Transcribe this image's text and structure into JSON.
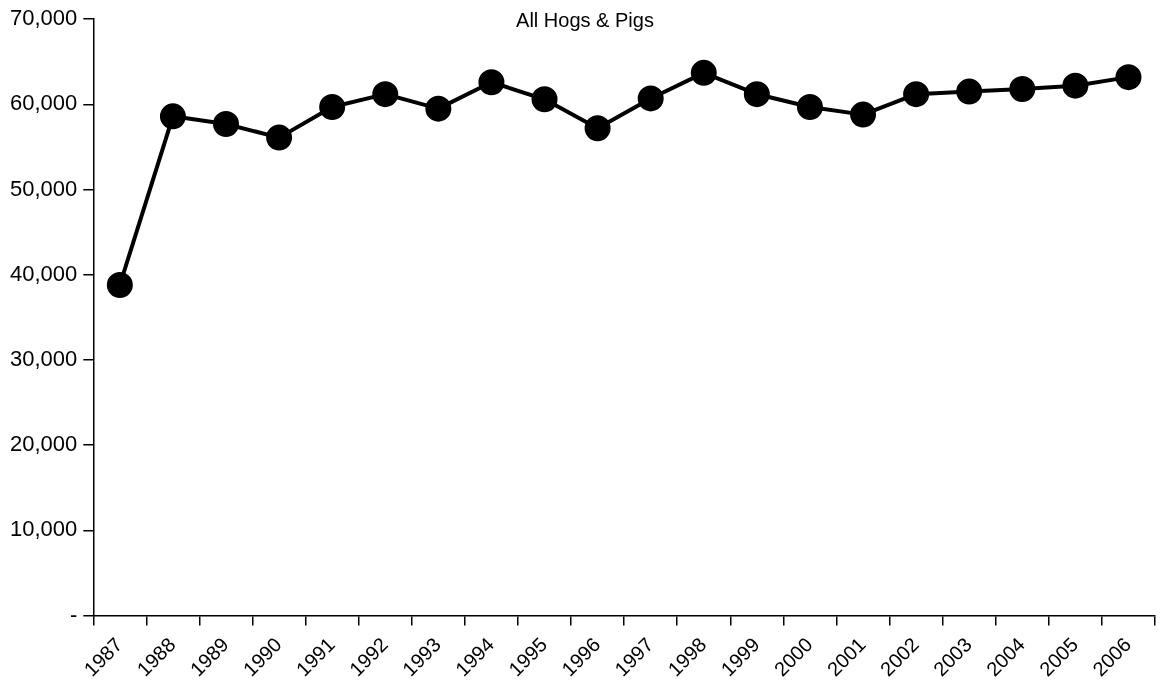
{
  "chart_data": {
    "type": "line",
    "title": "All Hogs & Pigs",
    "categories": [
      "1987",
      "1988",
      "1989",
      "1990",
      "1991",
      "1992",
      "1993",
      "1994",
      "1995",
      "1996",
      "1997",
      "1998",
      "1999",
      "2000",
      "2001",
      "2002",
      "2003",
      "2004",
      "2005",
      "2006"
    ],
    "series": [
      {
        "color": "#000000",
        "values": [
          38800,
          58600,
          57700,
          56100,
          59700,
          61200,
          59500,
          62600,
          60600,
          57200,
          60700,
          63700,
          61200,
          59700,
          58800,
          61200,
          61500,
          61800,
          62200,
          63200
        ]
      }
    ],
    "ylim": [
      0,
      70000
    ],
    "yticks": [
      {
        "value": 0,
        "label": "-"
      },
      {
        "value": 10000,
        "label": "10,000"
      },
      {
        "value": 20000,
        "label": "20,000"
      },
      {
        "value": 30000,
        "label": "30,000"
      },
      {
        "value": 40000,
        "label": "40,000"
      },
      {
        "value": 50000,
        "label": "50,000"
      },
      {
        "value": 60000,
        "label": "60,000"
      },
      {
        "value": 70000,
        "label": "70,000"
      }
    ],
    "grid": false,
    "legend": false,
    "marker": "circle",
    "line_style": "solid"
  }
}
